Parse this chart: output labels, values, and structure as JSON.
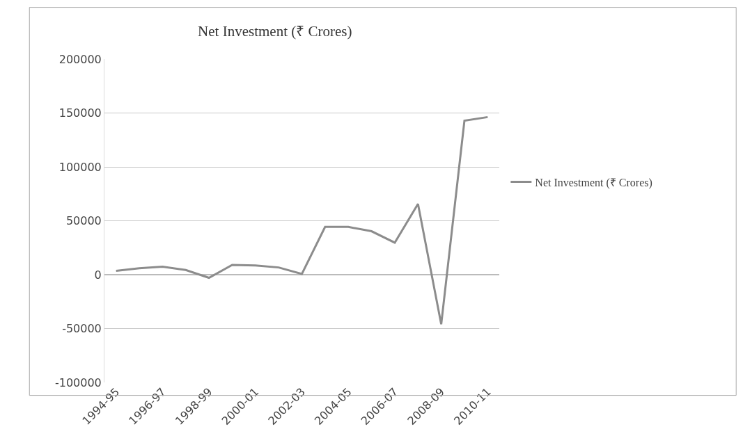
{
  "chart_data": {
    "type": "line",
    "title": "Net Investment (₹ Crores)",
    "categories": [
      "1994-95",
      null,
      "1996-97",
      null,
      "1998-99",
      null,
      "2000-01",
      null,
      "2002-03",
      null,
      "2004-05",
      null,
      "2006-07",
      null,
      "2008-09",
      null,
      "2010-11"
    ],
    "series": [
      {
        "name": "Net Investment (₹ Crores)",
        "color": "#8c8c8c",
        "values": [
          3600,
          6000,
          7400,
          4300,
          -2900,
          9000,
          8600,
          6700,
          700,
          44300,
          44300,
          40300,
          29700,
          65600,
          -46000,
          142900,
          146200
        ]
      }
    ],
    "ylim": [
      -100000,
      200000
    ],
    "yticks": [
      -100000,
      -50000,
      0,
      50000,
      100000,
      150000,
      200000
    ],
    "grid": "y",
    "legend": "right",
    "marker": "none",
    "line_style": "solid"
  }
}
